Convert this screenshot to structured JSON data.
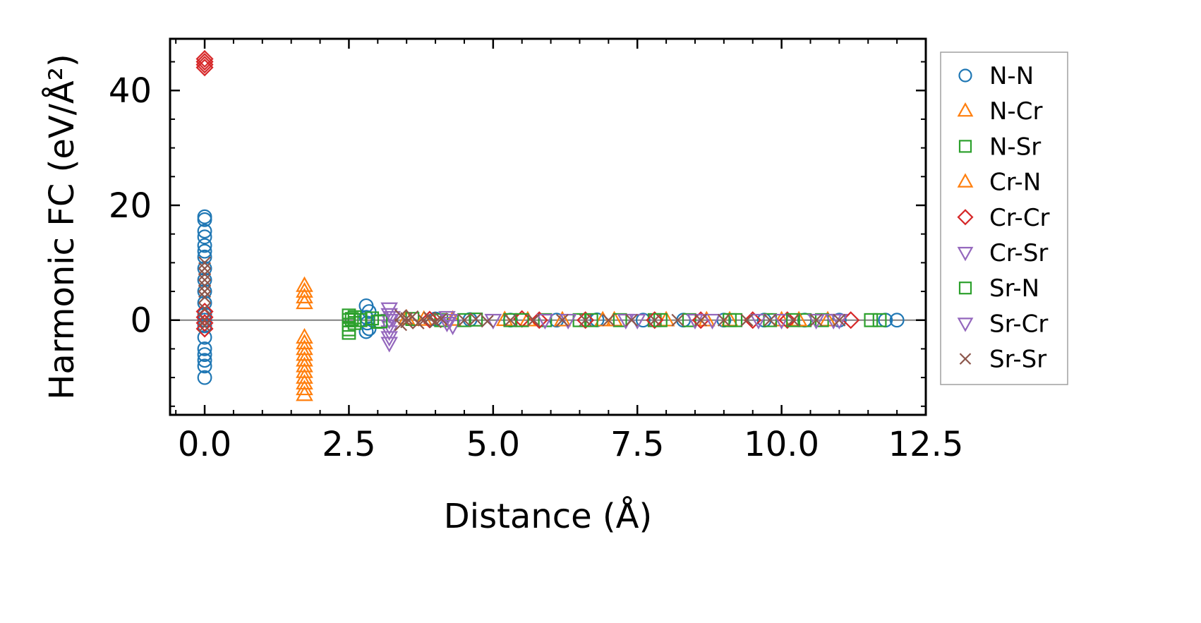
{
  "chart_data": {
    "type": "scatter",
    "xlabel": "Distance (Å)",
    "ylabel": "Harmonic FC (eV/Å²)",
    "xlim": [
      -0.6,
      12.5
    ],
    "ylim": [
      -16.5,
      49
    ],
    "x_ticks": [
      0.0,
      2.5,
      5.0,
      7.5,
      10.0,
      12.5
    ],
    "x_tick_labels": [
      "0.0",
      "2.5",
      "5.0",
      "7.5",
      "10.0",
      "12.5"
    ],
    "y_ticks": [
      0,
      20,
      40
    ],
    "y_tick_labels": [
      "0",
      "20",
      "40"
    ],
    "reference_line_y": 0,
    "legend_position": "right (outside plot)",
    "series": [
      {
        "name": "N-N",
        "marker": "circle",
        "color": "#1f77b4",
        "points": [
          [
            0,
            18
          ],
          [
            0,
            17.5
          ],
          [
            0,
            15.5
          ],
          [
            0,
            14.5
          ],
          [
            0,
            13
          ],
          [
            0,
            12
          ],
          [
            0,
            11
          ],
          [
            0,
            9
          ],
          [
            0,
            7
          ],
          [
            0,
            5
          ],
          [
            0,
            3
          ],
          [
            0,
            1
          ],
          [
            0,
            0
          ],
          [
            0,
            -1
          ],
          [
            0,
            -3
          ],
          [
            0,
            -5
          ],
          [
            0,
            -6
          ],
          [
            0,
            -7
          ],
          [
            0,
            -8
          ],
          [
            0,
            -10
          ],
          [
            2.8,
            2.5
          ],
          [
            2.85,
            1.5
          ],
          [
            2.8,
            0.5
          ],
          [
            2.82,
            -0.5
          ],
          [
            2.85,
            -1.5
          ],
          [
            2.8,
            -2
          ],
          [
            4.0,
            0.2
          ],
          [
            4.6,
            0.1
          ],
          [
            5.3,
            0
          ],
          [
            6.1,
            0
          ],
          [
            6.8,
            0.05
          ],
          [
            7.6,
            0
          ],
          [
            8.3,
            0
          ],
          [
            9.0,
            0
          ],
          [
            9.7,
            0
          ],
          [
            10.4,
            0
          ],
          [
            11.0,
            0
          ],
          [
            11.8,
            0
          ],
          [
            12.0,
            0
          ]
        ]
      },
      {
        "name": "N-Cr",
        "marker": "triangle-up",
        "color": "#ff7f0e",
        "points": [
          [
            1.73,
            6
          ],
          [
            1.73,
            5
          ],
          [
            1.73,
            4
          ],
          [
            1.73,
            3
          ],
          [
            1.73,
            -3
          ],
          [
            1.73,
            -4
          ],
          [
            1.73,
            -5
          ],
          [
            1.73,
            -6
          ],
          [
            1.73,
            -7
          ],
          [
            1.73,
            -8
          ],
          [
            1.73,
            -9
          ],
          [
            1.73,
            -10
          ],
          [
            1.73,
            -11
          ],
          [
            1.73,
            -12
          ],
          [
            1.73,
            -13
          ],
          [
            3.5,
            0.3
          ],
          [
            4.3,
            0.1
          ],
          [
            5.2,
            0.05
          ],
          [
            6.2,
            0
          ],
          [
            7.1,
            0
          ],
          [
            8.0,
            0
          ],
          [
            9.1,
            0
          ],
          [
            10.0,
            0
          ],
          [
            10.8,
            0
          ]
        ]
      },
      {
        "name": "N-Sr",
        "marker": "square",
        "color": "#2ca02c",
        "points": [
          [
            2.5,
            0.8
          ],
          [
            2.5,
            0
          ],
          [
            2.5,
            -0.8
          ],
          [
            2.5,
            -1.6
          ],
          [
            2.5,
            -2.2
          ],
          [
            2.6,
            0.5
          ],
          [
            2.6,
            -0.5
          ],
          [
            2.7,
            0
          ],
          [
            2.9,
            0.3
          ],
          [
            3.0,
            -0.3
          ],
          [
            3.6,
            0.2
          ],
          [
            4.1,
            0
          ],
          [
            4.7,
            0.1
          ],
          [
            5.3,
            0
          ],
          [
            5.9,
            0
          ],
          [
            6.5,
            0
          ],
          [
            7.2,
            0
          ],
          [
            7.8,
            0
          ],
          [
            8.4,
            0
          ],
          [
            9.1,
            0
          ],
          [
            9.8,
            0
          ],
          [
            10.4,
            0
          ],
          [
            10.7,
            0
          ],
          [
            11.55,
            0
          ],
          [
            11.7,
            0
          ]
        ]
      },
      {
        "name": "Cr-N",
        "marker": "triangle-up",
        "color": "#ff7f0e",
        "points": [
          [
            3.8,
            0.1
          ],
          [
            5.6,
            0
          ],
          [
            6.9,
            0
          ],
          [
            8.7,
            0
          ],
          [
            10.3,
            0
          ]
        ]
      },
      {
        "name": "Cr-Cr",
        "marker": "diamond",
        "color": "#d62728",
        "points": [
          [
            0,
            45.5
          ],
          [
            0,
            45
          ],
          [
            0,
            44.5
          ],
          [
            0,
            44
          ],
          [
            0,
            1.5
          ],
          [
            0,
            0.5
          ],
          [
            0,
            -0.5
          ],
          [
            0,
            -1.5
          ],
          [
            3.9,
            0.1
          ],
          [
            5.5,
            0.2
          ],
          [
            5.8,
            0
          ],
          [
            6.6,
            0
          ],
          [
            7.8,
            0
          ],
          [
            8.6,
            0
          ],
          [
            9.5,
            0
          ],
          [
            10.1,
            0
          ],
          [
            11.2,
            0
          ]
        ]
      },
      {
        "name": "Cr-Sr",
        "marker": "triangle-down",
        "color": "#9467bd",
        "points": [
          [
            3.2,
            2
          ],
          [
            3.2,
            1
          ],
          [
            3.2,
            0
          ],
          [
            3.2,
            -1
          ],
          [
            3.2,
            -2
          ],
          [
            3.2,
            -3
          ],
          [
            3.2,
            -4
          ],
          [
            4.2,
            0.5
          ],
          [
            4.2,
            -0.5
          ],
          [
            4.3,
            -1
          ],
          [
            5.0,
            0
          ],
          [
            6.3,
            0
          ],
          [
            7.5,
            0
          ],
          [
            8.8,
            0
          ],
          [
            10.0,
            0
          ],
          [
            10.6,
            0
          ],
          [
            11.0,
            0
          ]
        ]
      },
      {
        "name": "Sr-N",
        "marker": "square",
        "color": "#2ca02c",
        "points": [
          [
            2.55,
            0.2
          ],
          [
            3.05,
            -0.2
          ],
          [
            4.5,
            0
          ],
          [
            5.5,
            0
          ],
          [
            6.7,
            0
          ],
          [
            7.9,
            0
          ],
          [
            9.2,
            0
          ],
          [
            10.2,
            0
          ]
        ]
      },
      {
        "name": "Sr-Cr",
        "marker": "triangle-down",
        "color": "#9467bd",
        "points": [
          [
            3.25,
            0.5
          ],
          [
            4.25,
            0
          ],
          [
            5.9,
            0
          ],
          [
            7.3,
            0
          ],
          [
            8.5,
            0
          ],
          [
            9.6,
            0
          ],
          [
            10.9,
            0
          ]
        ]
      },
      {
        "name": "Sr-Sr",
        "marker": "x",
        "color": "#8c564b",
        "points": [
          [
            0,
            10
          ],
          [
            0,
            9
          ],
          [
            0,
            8
          ],
          [
            0,
            7
          ],
          [
            0,
            6
          ],
          [
            0,
            5
          ],
          [
            0,
            4
          ],
          [
            0,
            2
          ],
          [
            0,
            0
          ],
          [
            0,
            -1
          ],
          [
            3.4,
            0.8
          ],
          [
            3.4,
            -0.8
          ],
          [
            3.5,
            0.3
          ],
          [
            3.5,
            -0.3
          ],
          [
            3.6,
            0.6
          ],
          [
            3.7,
            -0.5
          ],
          [
            3.8,
            0
          ],
          [
            3.9,
            0.4
          ],
          [
            4.0,
            -0.3
          ],
          [
            4.1,
            0.2
          ],
          [
            4.5,
            0
          ],
          [
            4.7,
            0.2
          ],
          [
            4.9,
            -0.2
          ],
          [
            5.3,
            0
          ],
          [
            5.7,
            0
          ],
          [
            6.2,
            0
          ],
          [
            6.6,
            0
          ],
          [
            7.0,
            0
          ],
          [
            7.4,
            0
          ],
          [
            7.8,
            0
          ],
          [
            8.2,
            0
          ],
          [
            8.6,
            0
          ],
          [
            9.0,
            0
          ],
          [
            9.4,
            0
          ],
          [
            9.8,
            0
          ],
          [
            10.2,
            0
          ],
          [
            10.6,
            0
          ],
          [
            11.0,
            0
          ]
        ]
      }
    ]
  }
}
